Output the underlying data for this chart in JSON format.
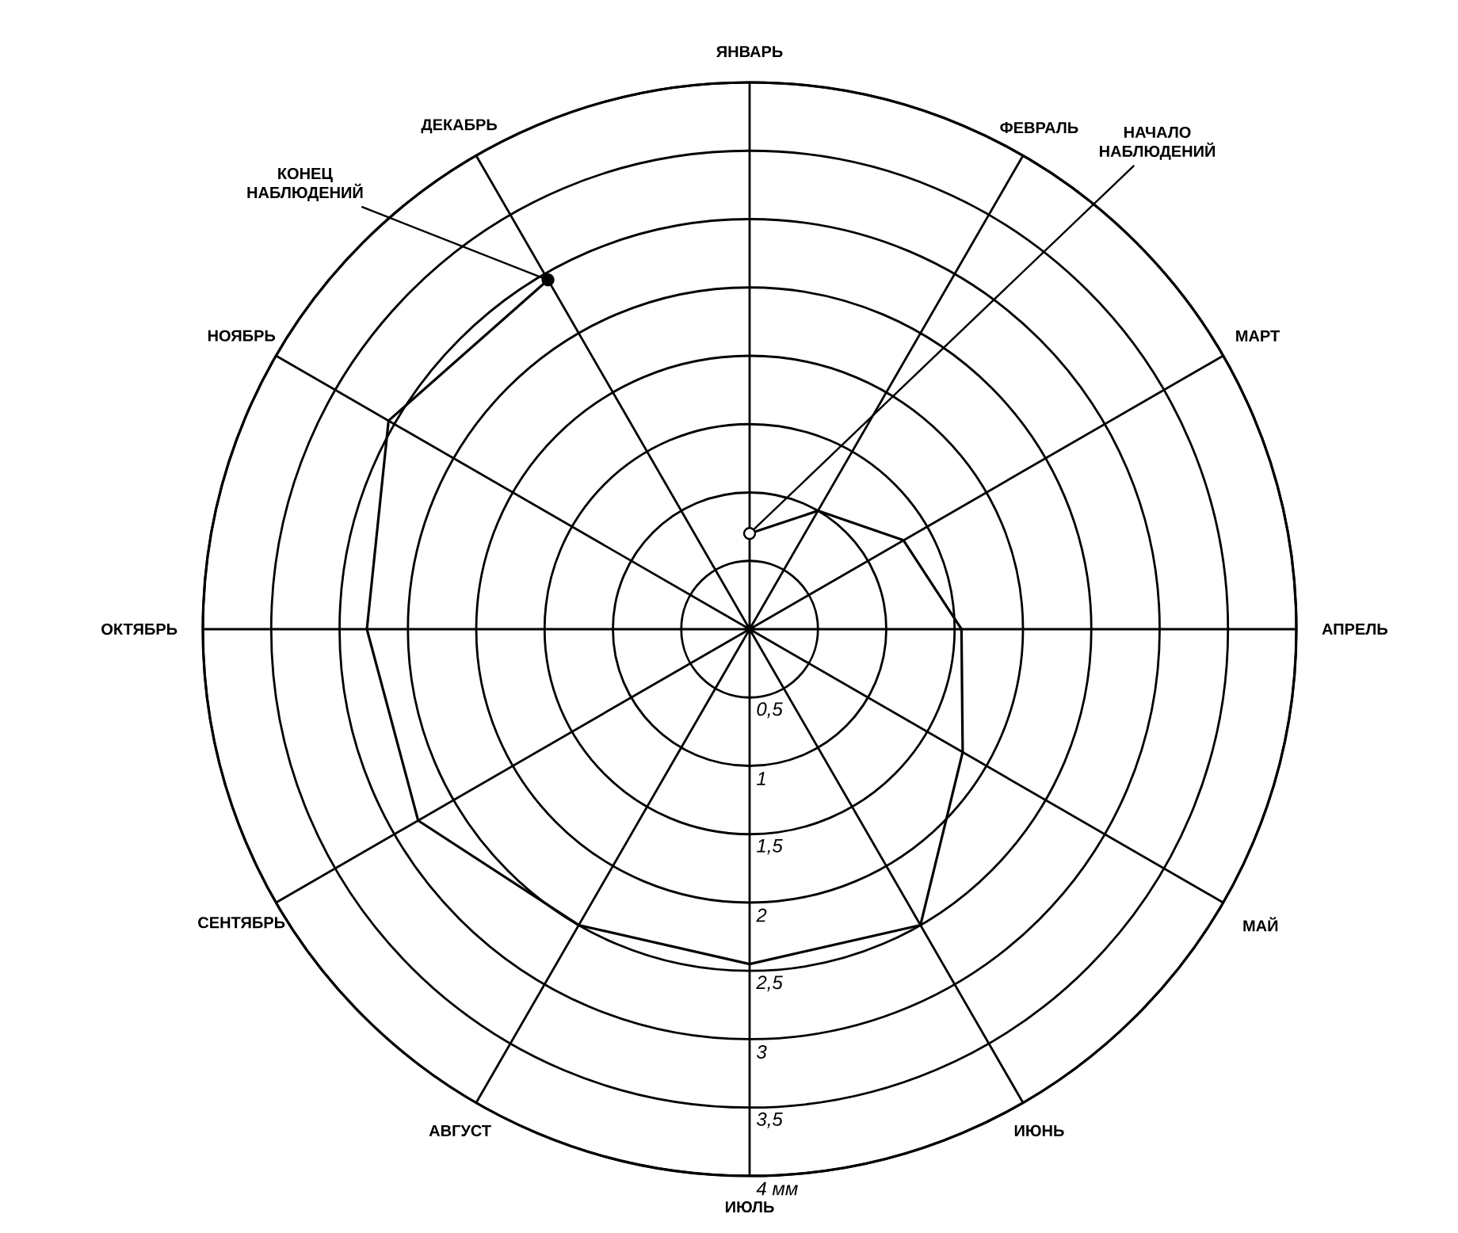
{
  "chart_data": {
    "type": "radar",
    "categories": [
      "ЯНВАРЬ",
      "ФЕВРАЛЬ",
      "МАРТ",
      "АПРЕЛЬ",
      "МАЙ",
      "ИЮНЬ",
      "ИЮЛЬ",
      "АВГУСТ",
      "СЕНТЯБРЬ",
      "ОКТЯБРЬ",
      "НОЯБРЬ",
      "ДЕКАБРЬ"
    ],
    "series": [
      {
        "color": "#000000",
        "values": [
          0.7,
          1.0,
          1.3,
          1.55,
          1.8,
          2.5,
          2.45,
          2.5,
          2.8,
          2.8,
          3.05,
          2.95
        ]
      }
    ],
    "ylim": [
      0,
      4
    ],
    "yticks": [
      {
        "value": 0.5,
        "label": "0,5"
      },
      1,
      {
        "value": 1.5,
        "label": "1,5"
      },
      2,
      {
        "value": 2.5,
        "label": "2,5"
      },
      3,
      {
        "value": 3.5,
        "label": "3,5"
      },
      {
        "value": 4,
        "label": "4 мм"
      }
    ],
    "grid": true,
    "line_style": "solid",
    "annotations": [
      {
        "text": "КОНЕЦ НАБЛЮДЕНИЙ",
        "x": "ДЕКАБРЬ"
      },
      {
        "text": "НАЧАЛО НАБЛЮДЕНИЙ",
        "x": "ЯНВАРЬ"
      }
    ]
  }
}
